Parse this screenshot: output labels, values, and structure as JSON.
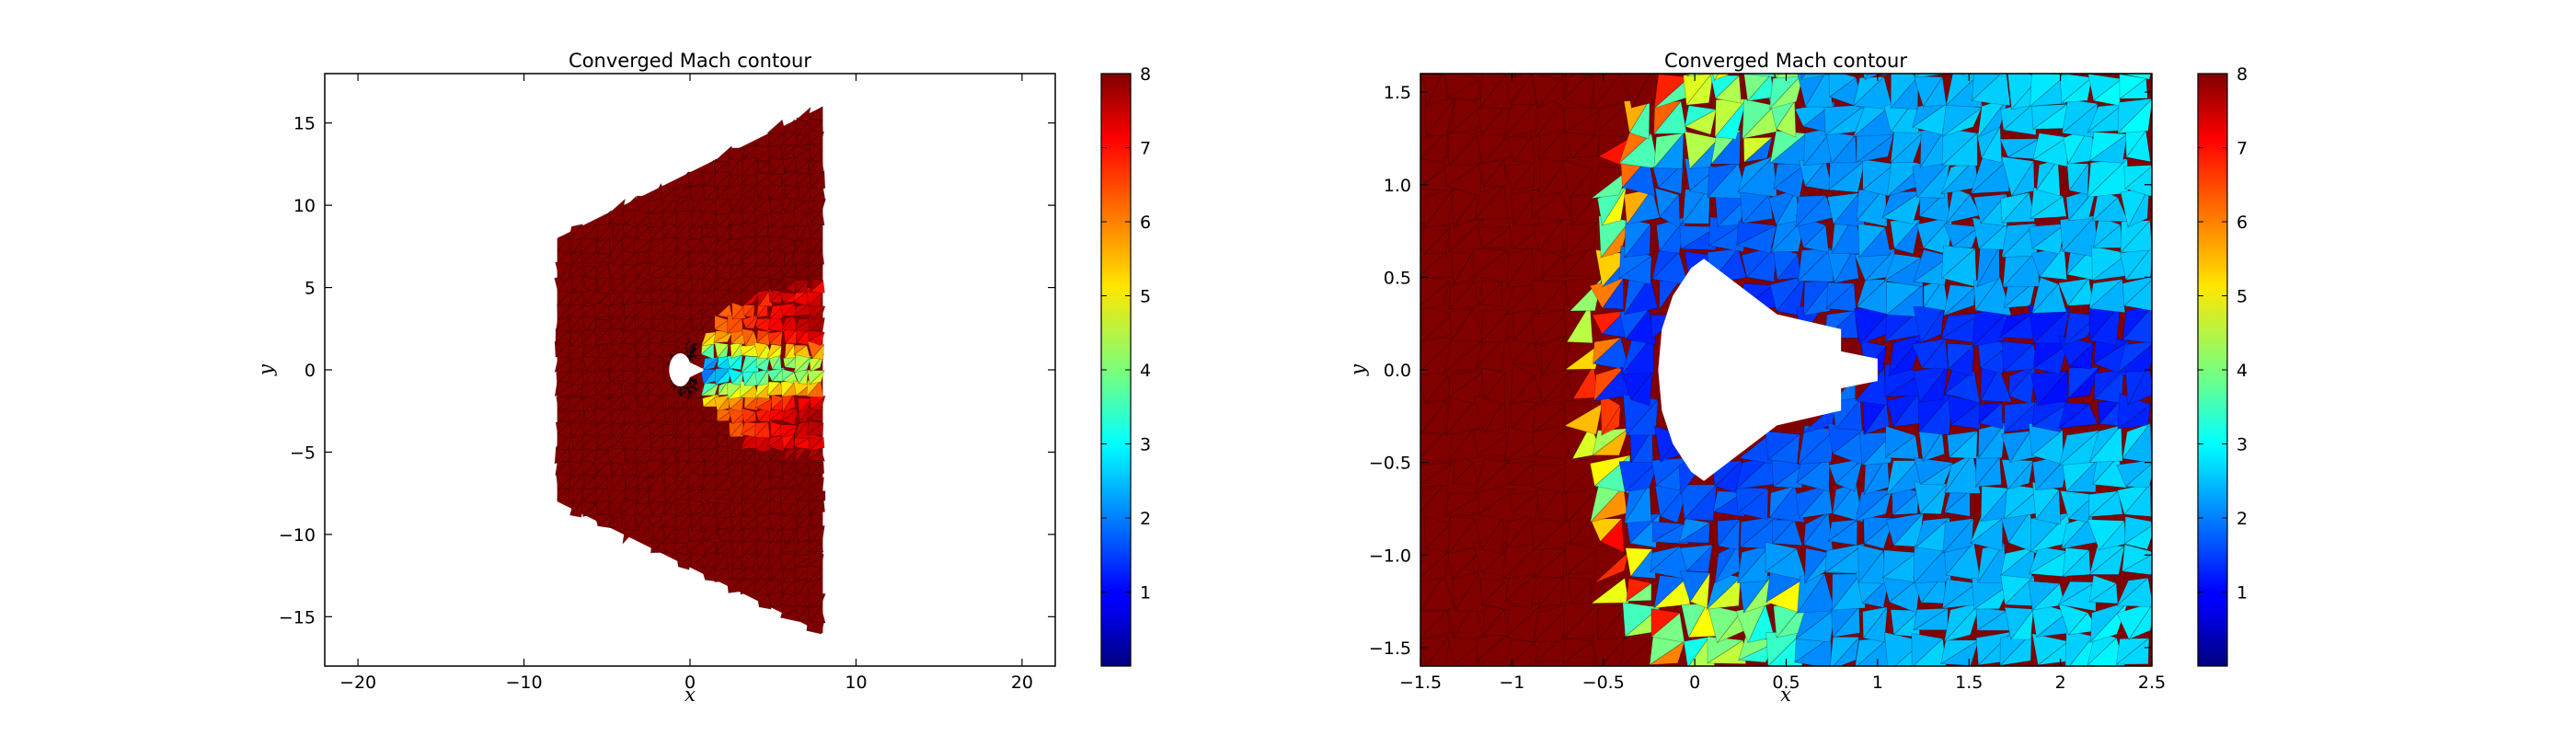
{
  "chart_data": [
    {
      "type": "heatmap",
      "title": "Converged Mach contour",
      "xlabel": "x",
      "ylabel": "y",
      "xlim": [
        -22,
        22
      ],
      "ylim": [
        -18,
        18
      ],
      "xticks": [
        -20,
        -10,
        0,
        10,
        20
      ],
      "yticks": [
        -15,
        -10,
        -5,
        0,
        5,
        10,
        15
      ],
      "colorbar": {
        "min": 0,
        "max": 8,
        "ticks": [
          1,
          2,
          3,
          4,
          5,
          6,
          7,
          8
        ],
        "colormap": "jet"
      },
      "freestream_mach": 8,
      "domain_polygon": [
        [
          -8,
          8
        ],
        [
          8,
          16
        ],
        [
          8,
          -16
        ],
        [
          -8,
          -8
        ]
      ],
      "body": {
        "nose_x": 0,
        "radius": 0.5,
        "cone_tip": [
          0.8,
          0.06
        ]
      },
      "shock_profile": [
        [
          0.2,
          0.0
        ],
        [
          0.6,
          1.2
        ],
        [
          1.5,
          3.0
        ],
        [
          3.0,
          4.3
        ],
        [
          5.0,
          5.0
        ],
        [
          8.0,
          5.4
        ]
      ],
      "grid": false
    },
    {
      "type": "heatmap",
      "title": "Converged Mach contour",
      "xlabel": "x",
      "ylabel": "y",
      "xlim": [
        -1.5,
        2.5
      ],
      "ylim": [
        -1.6,
        1.6
      ],
      "xticks": [
        -1.5,
        -1.0,
        -0.5,
        0.0,
        0.5,
        1.0,
        1.5,
        2.0,
        2.5
      ],
      "yticks": [
        -1.5,
        -1.0,
        -0.5,
        0.0,
        0.5,
        1.0,
        1.5
      ],
      "colorbar": {
        "min": 0,
        "max": 8,
        "ticks": [
          1,
          2,
          3,
          4,
          5,
          6,
          7,
          8
        ],
        "colormap": "jet"
      },
      "freestream_mach": 8,
      "body_polygon": [
        [
          -0.2,
          0.0
        ],
        [
          -0.18,
          0.22
        ],
        [
          -0.12,
          0.4
        ],
        [
          -0.02,
          0.55
        ],
        [
          0.05,
          0.6
        ],
        [
          0.45,
          0.3
        ],
        [
          0.8,
          0.22
        ],
        [
          0.8,
          0.1
        ],
        [
          1.0,
          0.06
        ],
        [
          1.0,
          -0.06
        ],
        [
          0.8,
          -0.1
        ],
        [
          0.8,
          -0.22
        ],
        [
          0.45,
          -0.3
        ],
        [
          0.05,
          -0.6
        ],
        [
          -0.02,
          -0.55
        ],
        [
          -0.12,
          -0.4
        ],
        [
          -0.18,
          -0.22
        ]
      ],
      "shock_profile": [
        [
          -0.62,
          0.0
        ],
        [
          -0.62,
          0.4
        ],
        [
          -0.5,
          0.9
        ],
        [
          -0.45,
          1.2
        ],
        [
          -0.3,
          1.45
        ],
        [
          -0.15,
          1.6
        ]
      ],
      "grid": false
    }
  ]
}
